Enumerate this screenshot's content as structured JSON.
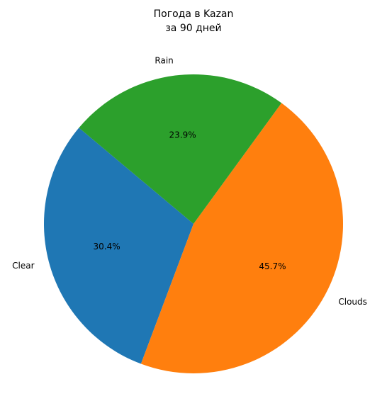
{
  "chart_data": {
    "type": "pie",
    "title_lines": [
      "Погода в Kazan",
      "за 90 дней"
    ],
    "categories": [
      "Clear",
      "Clouds",
      "Rain"
    ],
    "values": [
      30.4,
      45.7,
      23.9
    ],
    "value_labels": [
      "30.4%",
      "45.7%",
      "23.9%"
    ],
    "colors": [
      "#1f77b4",
      "#ff7f0e",
      "#2ca02c"
    ],
    "start_angle_deg": 140,
    "direction": "counterclockwise"
  }
}
